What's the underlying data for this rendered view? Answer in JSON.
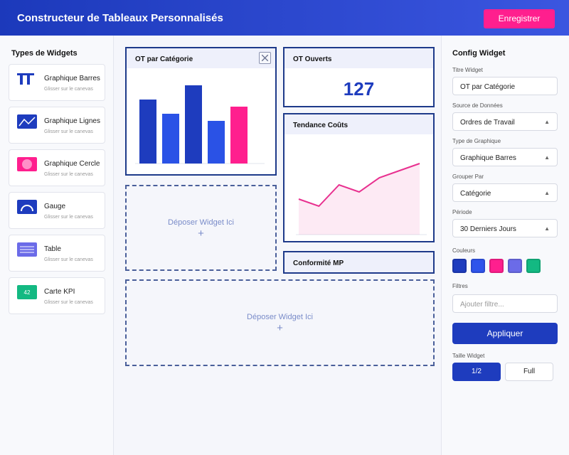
{
  "header": {
    "title": "Constructeur de Tableaux Personnalisés",
    "save_button": "Enregistrer"
  },
  "sidebar": {
    "title": "Types de Widgets",
    "items": [
      {
        "label": "Graphique Barres",
        "hint": "Glisser sur le canevas"
      },
      {
        "label": "Graphique Lignes",
        "hint": "Glisser sur le canevas"
      },
      {
        "label": "Graphique Cercle",
        "hint": "Glisser sur le canevas"
      },
      {
        "label": "Gauge",
        "hint": "Glisser sur le canevas"
      },
      {
        "label": "Table",
        "hint": "Glisser sur le canevas"
      },
      {
        "label": "Carte KPI",
        "hint": "Glisser sur le canevas",
        "icon_text": "42"
      }
    ]
  },
  "canvas": {
    "bar_widget": {
      "title": "OT par Catégorie",
      "values": [
        90,
        70,
        110,
        60,
        80
      ],
      "colors": [
        "#1e3cbe",
        "#2a52e6",
        "#1e3cbe",
        "#2a52e6",
        "#ff1f8e"
      ]
    },
    "kpi_widget": {
      "title": "OT Ouverts",
      "value": 127
    },
    "line_widget": {
      "title": "Tendance Coûts",
      "values": [
        50,
        40,
        70,
        60,
        80,
        90,
        100
      ],
      "color": "#e8308f"
    },
    "compliance_widget": {
      "title": "Conformité MP"
    },
    "drop_zones": [
      {
        "text": "Déposer Widget Ici",
        "plus": "+"
      },
      {
        "text": "Déposer Widget Ici",
        "plus": "+"
      }
    ]
  },
  "config": {
    "title": "Config Widget",
    "fields": [
      {
        "label": "Titre Widget",
        "value": "OT par Catégorie"
      },
      {
        "label": "Source de Données",
        "value": "Ordres de Travail",
        "arrow": "▲"
      },
      {
        "label": "Type de Graphique",
        "value": "Graphique Barres",
        "arrow": "▲"
      },
      {
        "label": "Grouper Par",
        "value": "Catégorie",
        "arrow": "▲"
      },
      {
        "label": "Période",
        "value": "30 Derniers Jours",
        "arrow": "▲"
      }
    ],
    "colors_label": "Couleurs",
    "colors": [
      "#1e3cbe",
      "#2f54eb",
      "#ff1f8e",
      "#6b6be8",
      "#13b982"
    ],
    "filters_label": "Filtres",
    "filters_placeholder": "Ajouter filtre...",
    "apply_button": "Appliquer",
    "size_label": "Taille Widget",
    "size_options": [
      "1/2",
      "Full"
    ]
  }
}
